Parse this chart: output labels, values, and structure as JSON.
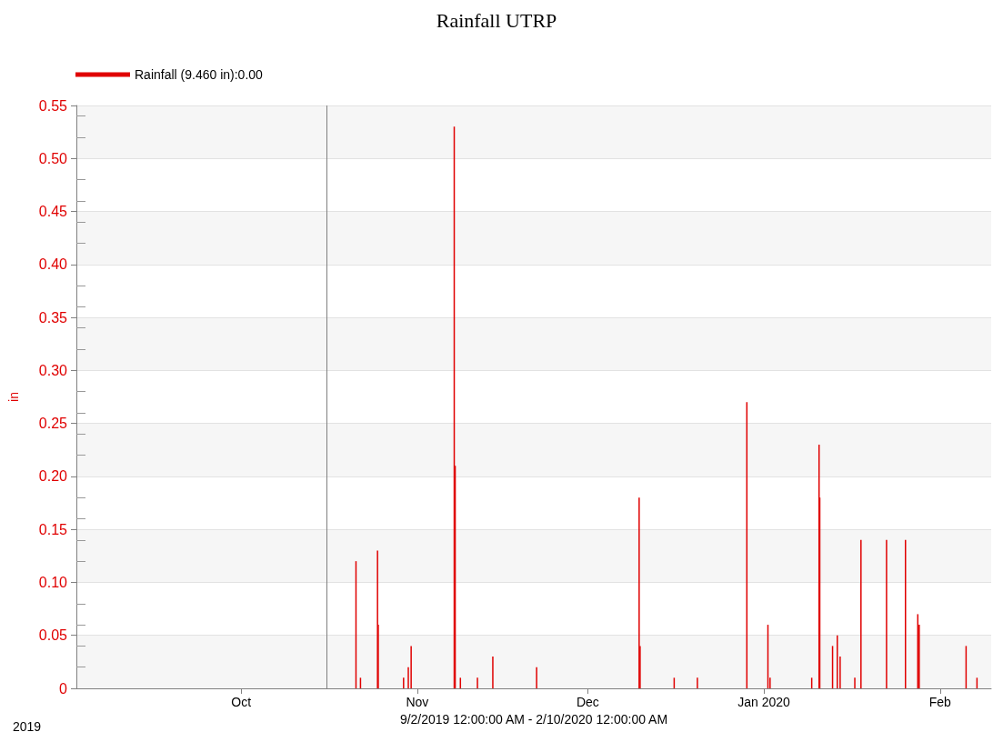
{
  "chart_data": {
    "type": "bar",
    "title": "Rainfall UTRP",
    "xlabel": "9/2/2019 12:00:00 AM - 2/10/2020 12:00:00 AM",
    "ylabel": "in",
    "annotations": [
      "2019"
    ],
    "series": [
      {
        "name": "Rainfall (9.460 in):0.00",
        "color": "#e00000",
        "x": [
          "2019-10-21T05:00",
          "2019-10-22T00:00",
          "2019-10-25T00:00",
          "2019-10-25T03:00",
          "2019-10-29T14:00",
          "2019-10-30T10:00",
          "2019-10-30T22:00",
          "2019-11-07T12:00",
          "2019-11-07T16:00",
          "2019-11-08T14:00",
          "2019-11-11T14:00",
          "2019-11-14T07:00",
          "2019-11-22T00:00",
          "2019-12-10T01:00",
          "2019-12-10T05:00",
          "2019-12-16T05:00",
          "2019-12-20T07:00",
          "2019-12-29T00:00",
          "2020-01-01T17:00",
          "2020-01-02T02:00",
          "2020-01-09T10:00",
          "2020-01-10T17:00",
          "2020-01-10T20:00",
          "2020-01-13T02:00",
          "2020-01-13T22:00",
          "2020-01-14T10:00",
          "2020-01-17T00:00",
          "2020-01-18T02:00",
          "2020-01-22T14:00",
          "2020-01-25T22:00",
          "2020-01-28T02:00",
          "2020-01-28T08:00",
          "2020-02-05T14:00",
          "2020-02-07T12:00"
        ],
        "values": [
          0.12,
          0.01,
          0.13,
          0.06,
          0.01,
          0.02,
          0.04,
          0.53,
          0.21,
          0.01,
          0.01,
          0.03,
          0.02,
          0.18,
          0.04,
          0.01,
          0.01,
          0.27,
          0.06,
          0.01,
          0.01,
          0.23,
          0.18,
          0.04,
          0.05,
          0.03,
          0.01,
          0.14,
          0.14,
          0.14,
          0.07,
          0.06,
          0.04,
          0.01
        ]
      }
    ],
    "xlim": [
      "2019-09-02",
      "2020-02-10"
    ],
    "xticks": [
      {
        "value": "2019-10-01",
        "label": "Oct"
      },
      {
        "value": "2019-11-01",
        "label": "Nov"
      },
      {
        "value": "2019-12-01",
        "label": "Dec"
      },
      {
        "value": "2020-01-01",
        "label": "Jan 2020"
      },
      {
        "value": "2020-02-01",
        "label": "Feb"
      }
    ],
    "ylim": [
      0,
      0.55
    ],
    "yticks": [
      0,
      0.05,
      {
        "value": 0.1,
        "label": "0.10"
      },
      0.15,
      {
        "value": 0.2,
        "label": "0.20"
      },
      0.25,
      {
        "value": 0.3,
        "label": "0.30"
      },
      0.35,
      {
        "value": 0.4,
        "label": "0.40"
      },
      0.45,
      {
        "value": 0.5,
        "label": "0.50"
      },
      0.55
    ],
    "ref_lines": [
      {
        "axis": "x",
        "value": "2019-10-16",
        "color": "#808080"
      }
    ],
    "grid": "y",
    "legend": "top left"
  }
}
